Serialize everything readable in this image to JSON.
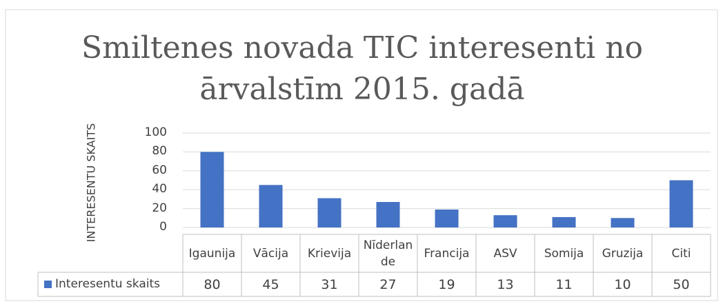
{
  "chart_data": {
    "type": "bar",
    "title": "Smiltenes novada TIC interesenti no ārvalstīm 2015. gadā",
    "y_label": "INTERESENTU SKAITS",
    "categories": [
      "Igaunija",
      "Vācija",
      "Krievija",
      "Nīderlande",
      "Francija",
      "ASV",
      "Somija",
      "Gruzija",
      "Citi"
    ],
    "series": [
      {
        "name": "Interesentu skaits",
        "color": "#4472c4",
        "values": [
          80,
          45,
          31,
          27,
          19,
          13,
          11,
          10,
          50
        ]
      }
    ],
    "ylim": [
      0,
      100
    ],
    "yticks": [
      0,
      20,
      40,
      60,
      80,
      100
    ],
    "grid": true,
    "legend": "bottom-left",
    "data_table": true
  }
}
